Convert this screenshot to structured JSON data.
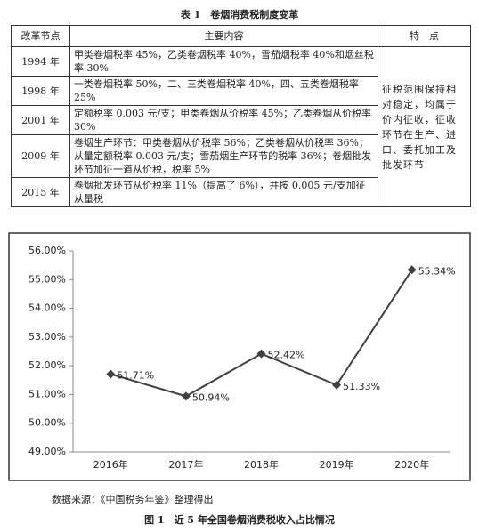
{
  "table": {
    "caption": "表 1　卷烟消费税制度变革",
    "headers": [
      "改革节点",
      "主要内容",
      "特　点"
    ],
    "rows": [
      [
        "1994 年",
        "甲类卷烟税率 45%，乙类卷烟税率 40%，雪茄烟税率 40%和烟丝税率 30%"
      ],
      [
        "1998 年",
        "一类卷烟税率 50%，二、三类卷烟税率 40%，四、五类卷烟税率 25%"
      ],
      [
        "2001 年",
        "定额税率 0.003 元/支；甲类卷烟从价税率 45%；乙类卷烟从价税率 30%"
      ],
      [
        "2009 年",
        "卷烟生产环节：甲类卷烟从价税率 56%；乙类卷烟从价税率 36%；从量定额税率 0.003 元/支；雪茄烟生产环节的税率 36%；卷烟批发环节加征一道从价税，税率 5%"
      ],
      [
        "2015 年",
        "卷烟批发环节从价税率 11%（提高了 6%），并按 0.005 元/支加征从量税"
      ]
    ],
    "feature": "征税范围保持相对稳定，均属于价内征收，征收环节在生产、进口、委托加工及批发环节"
  },
  "chart_data": {
    "type": "line",
    "categories": [
      "2016年",
      "2017年",
      "2018年",
      "2019年",
      "2020年"
    ],
    "values": [
      51.71,
      50.94,
      52.42,
      51.33,
      55.34
    ],
    "value_labels": [
      "51.71%",
      "50.94%",
      "52.42%",
      "51.33%",
      "55.34%"
    ],
    "color": "#404040",
    "ylim": [
      49,
      56
    ],
    "yticks": [
      {
        "value": 49,
        "label": "49.00%"
      },
      {
        "value": 50,
        "label": "50.00%"
      },
      {
        "value": 51,
        "label": "51.00%"
      },
      {
        "value": 52,
        "label": "52.00%"
      },
      {
        "value": 53,
        "label": "53.00%"
      },
      {
        "value": 54,
        "label": "54.00%"
      },
      {
        "value": 55,
        "label": "55.00%"
      },
      {
        "value": 56,
        "label": "56.00%"
      }
    ],
    "grid": false
  },
  "source": "数据来源：《中国税务年鉴》整理得出",
  "figure_caption": "图 1　近 5 年全国卷烟消费税收入占比情况"
}
